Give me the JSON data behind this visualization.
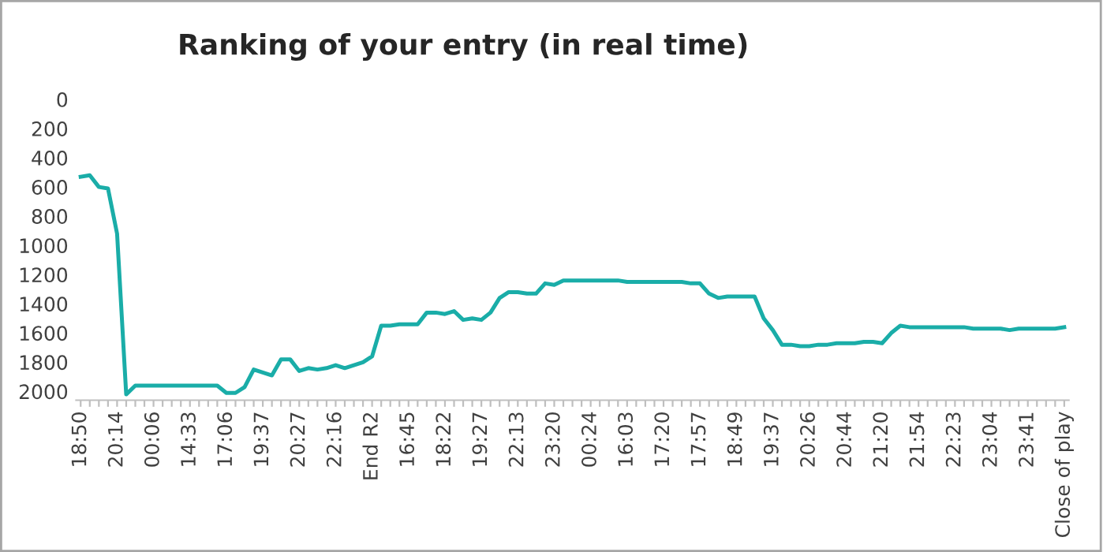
{
  "chart_data": {
    "type": "line",
    "title": "Ranking of your entry (in real time)",
    "categories": [
      "18:50",
      null,
      null,
      null,
      "20:14",
      null,
      null,
      null,
      "00:06",
      null,
      null,
      null,
      "14:33",
      null,
      null,
      null,
      "17:06",
      null,
      null,
      null,
      "19:37",
      null,
      null,
      null,
      "20:27",
      null,
      null,
      null,
      "22:16",
      null,
      null,
      null,
      "End R2",
      null,
      null,
      null,
      "16:45",
      null,
      null,
      null,
      "18:22",
      null,
      null,
      null,
      "19:27",
      null,
      null,
      null,
      "22:13",
      null,
      null,
      null,
      "23:20",
      null,
      null,
      null,
      "00:24",
      null,
      null,
      null,
      "16:03",
      null,
      null,
      null,
      "17:20",
      null,
      null,
      null,
      "17:57",
      null,
      null,
      null,
      "18:49",
      null,
      null,
      null,
      "19:37",
      null,
      null,
      null,
      "20:26",
      null,
      null,
      null,
      "20:44",
      null,
      null,
      null,
      "21:20",
      null,
      null,
      null,
      "21:54",
      null,
      null,
      null,
      "22:23",
      null,
      null,
      null,
      "23:04",
      null,
      null,
      null,
      "23:41",
      null,
      null,
      null,
      "Close of play"
    ],
    "series": [
      {
        "color": "#1aada8",
        "values": [
          530,
          520,
          600,
          610,
          920,
          2020,
          1960,
          1960,
          1960,
          1960,
          1960,
          1960,
          1960,
          1960,
          1960,
          1960,
          2010,
          2010,
          1970,
          1850,
          1870,
          1890,
          1780,
          1780,
          1860,
          1840,
          1850,
          1840,
          1820,
          1840,
          1820,
          1800,
          1760,
          1550,
          1550,
          1540,
          1540,
          1540,
          1460,
          1460,
          1470,
          1450,
          1510,
          1500,
          1510,
          1460,
          1360,
          1320,
          1320,
          1330,
          1330,
          1260,
          1270,
          1240,
          1240,
          1240,
          1240,
          1240,
          1240,
          1240,
          1250,
          1250,
          1250,
          1250,
          1250,
          1250,
          1250,
          1260,
          1260,
          1330,
          1360,
          1350,
          1350,
          1350,
          1350,
          1500,
          1580,
          1680,
          1680,
          1690,
          1690,
          1680,
          1680,
          1670,
          1670,
          1670,
          1660,
          1660,
          1670,
          1600,
          1550,
          1560,
          1560,
          1560,
          1560,
          1560,
          1560,
          1560,
          1570,
          1570,
          1570,
          1570,
          1580,
          1570,
          1570,
          1570,
          1570,
          1570,
          1560
        ]
      }
    ],
    "ylim": [
      2060,
      0
    ],
    "yticks": [
      0,
      200,
      400,
      600,
      800,
      1000,
      1200,
      1400,
      1600,
      1800,
      2000
    ],
    "grid": false,
    "marker": "none",
    "line_style": "solid"
  }
}
